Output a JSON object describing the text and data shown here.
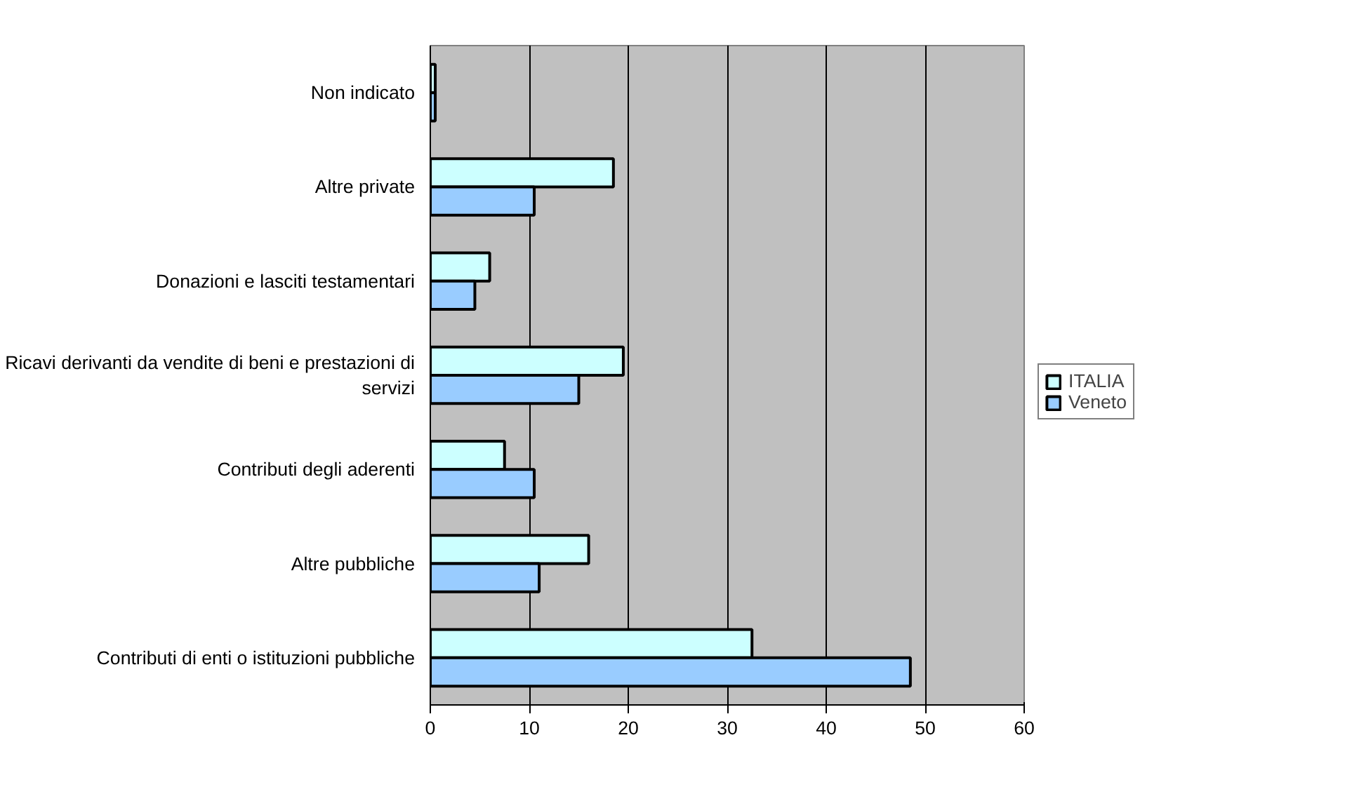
{
  "chart_data": {
    "type": "bar",
    "orientation": "horizontal",
    "categories": [
      "Non indicato",
      "Altre private",
      "Donazioni e lasciti testamentari",
      "Ricavi derivanti da vendite di beni e prestazioni di servizi",
      "Contributi degli aderenti",
      "Altre pubbliche",
      "Contributi di enti o istituzioni pubbliche"
    ],
    "series": [
      {
        "name": "ITALIA",
        "color": "#ccffff",
        "values": [
          0.5,
          18.5,
          6,
          19.5,
          7.5,
          16,
          32.5
        ]
      },
      {
        "name": "Veneto",
        "color": "#99ccff",
        "values": [
          0.5,
          10.5,
          4.5,
          15,
          10.5,
          11,
          48.5
        ]
      }
    ],
    "xlim": [
      0,
      60
    ],
    "xticks": [
      0,
      10,
      20,
      30,
      40,
      50,
      60
    ],
    "grid": "x",
    "legend": "right"
  }
}
